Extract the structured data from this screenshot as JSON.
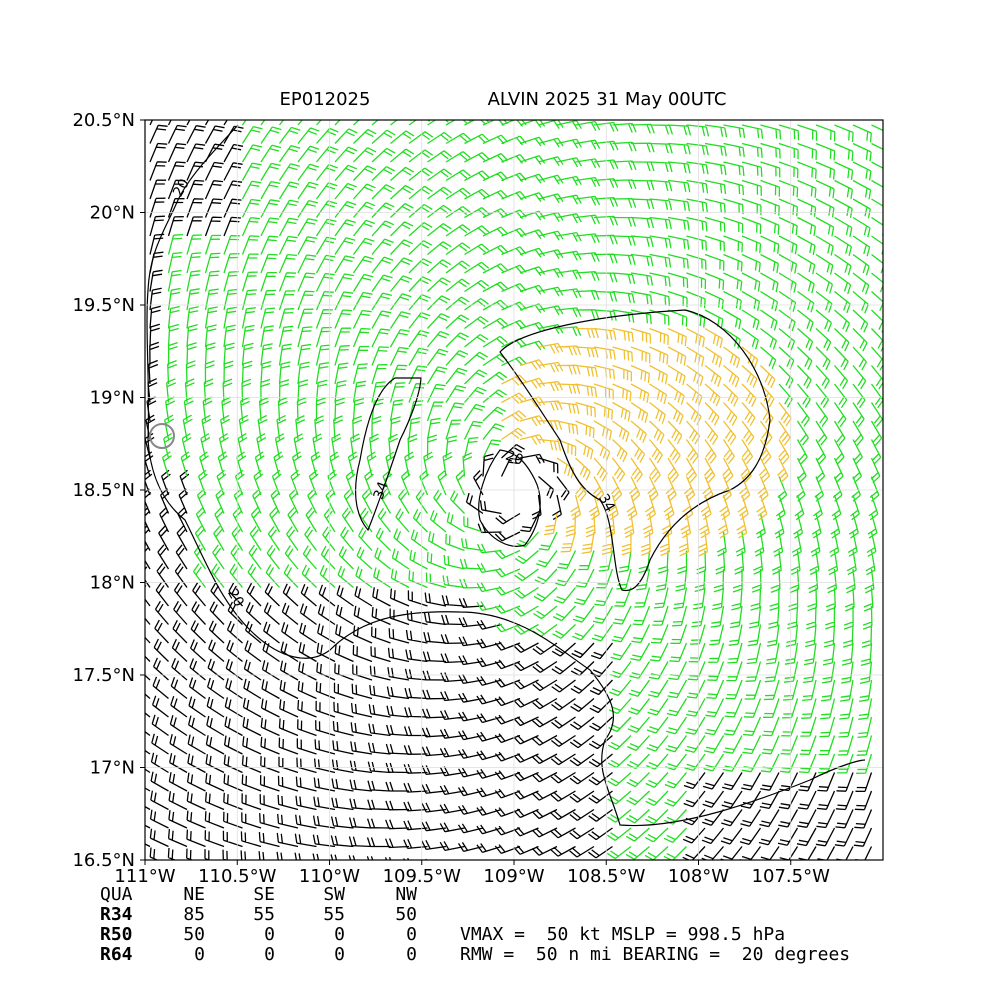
{
  "title": {
    "storm_id": "EP012025",
    "name": "ALVIN 2025 31 May 00UTC"
  },
  "map": {
    "xlim": [
      -111,
      -107
    ],
    "ylim": [
      16.5,
      20.5
    ],
    "xticks": [
      {
        "value": -111,
        "label": "111°W"
      },
      {
        "value": -110.5,
        "label": "110.5°W"
      },
      {
        "value": -110,
        "label": "110°W"
      },
      {
        "value": -109.5,
        "label": "109.5°W"
      },
      {
        "value": -109,
        "label": "109°W"
      },
      {
        "value": -108.5,
        "label": "108.5°W"
      },
      {
        "value": -108,
        "label": "108°W"
      },
      {
        "value": -107.5,
        "label": "107.5°W"
      }
    ],
    "yticks": [
      {
        "value": 16.5,
        "label": "16.5°N"
      },
      {
        "value": 17,
        "label": "17°N"
      },
      {
        "value": 17.5,
        "label": "17.5°N"
      },
      {
        "value": 18,
        "label": "18°N"
      },
      {
        "value": 18.5,
        "label": "18.5°N"
      },
      {
        "value": 19,
        "label": "19°N"
      },
      {
        "value": 19.5,
        "label": "19.5°N"
      },
      {
        "value": 20,
        "label": "20°N"
      },
      {
        "value": 20.5,
        "label": "20.5°N"
      }
    ],
    "contour_labels": [
      "20",
      "20",
      "34",
      "34",
      "20"
    ]
  },
  "table": {
    "header": [
      "QUA",
      "NE",
      "SE",
      "SW",
      "NW"
    ],
    "rows": [
      [
        "R34",
        "85",
        "55",
        "55",
        "50"
      ],
      [
        "R50",
        "50",
        "0",
        "0",
        "0"
      ],
      [
        "R64",
        "0",
        "0",
        "0",
        "0"
      ]
    ]
  },
  "info": [
    "VMAX =  50 kt MSLP = 998.5 hPa",
    "RMW =  50 n mi BEARING =  20 degrees"
  ]
}
